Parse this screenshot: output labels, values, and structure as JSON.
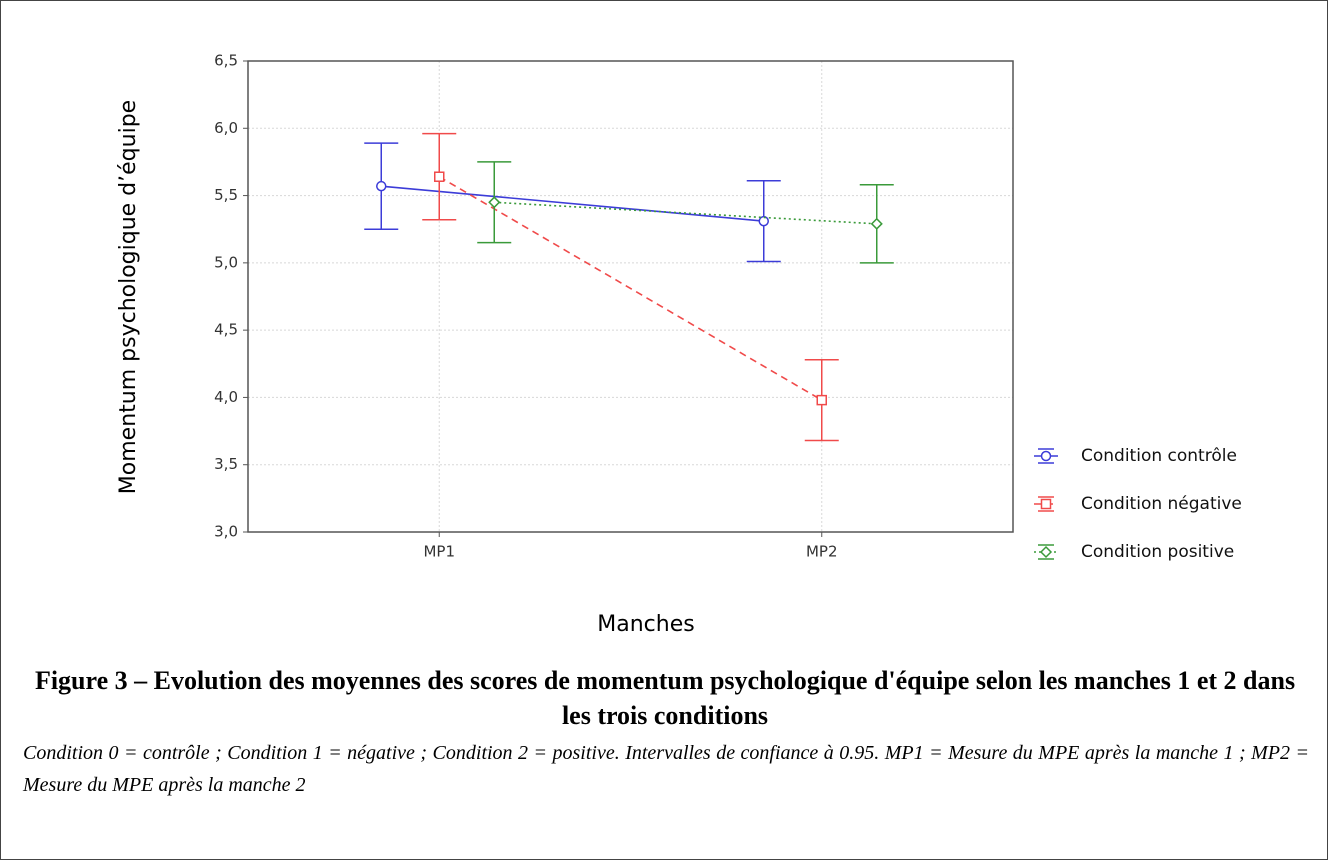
{
  "chart_data": {
    "type": "line",
    "y_label": "Momentum psychologique d’équipe",
    "x_label": "Manches",
    "categories": [
      "MP1",
      "MP2"
    ],
    "series": [
      {
        "name": "Condition contrôle",
        "color": "#3c3cd8",
        "marker": "circle",
        "dash": "solid",
        "values": [
          5.57,
          5.31
        ],
        "errors": [
          0.32,
          0.3
        ]
      },
      {
        "name": "Condition négative",
        "color": "#f04a4a",
        "marker": "square",
        "dash": "dashed",
        "values": [
          5.64,
          3.98
        ],
        "errors": [
          0.32,
          0.3
        ]
      },
      {
        "name": "Condition positive",
        "color": "#3a9a3a",
        "marker": "diamond",
        "dash": "dotted",
        "values": [
          5.45,
          5.29
        ],
        "errors": [
          0.3,
          0.29
        ]
      }
    ],
    "ylim": [
      3.0,
      6.5
    ],
    "yticks": [
      {
        "value": 3.0,
        "label": "3,0"
      },
      {
        "value": 3.5,
        "label": "3,5"
      },
      {
        "value": 4.0,
        "label": "4,0"
      },
      {
        "value": 4.5,
        "label": "4,5"
      },
      {
        "value": 5.0,
        "label": "5,0"
      },
      {
        "value": 5.5,
        "label": "5,5"
      },
      {
        "value": 6.0,
        "label": "6,0"
      },
      {
        "value": 6.5,
        "label": "6,5"
      }
    ],
    "grid": true,
    "legend": "right",
    "figure_title": "Figure 3 – Evolution des moyennes des scores de momentum psychologique d'équipe selon les manches 1 et 2 dans les trois conditions",
    "note": "Condition 0 = contrôle ; Condition 1 = négative ; Condition 2 = positive. Intervalles de confiance à 0.95. MP1 = Mesure du MPE après la manche 1 ; MP2 = Mesure du MPE après la manche 2"
  }
}
